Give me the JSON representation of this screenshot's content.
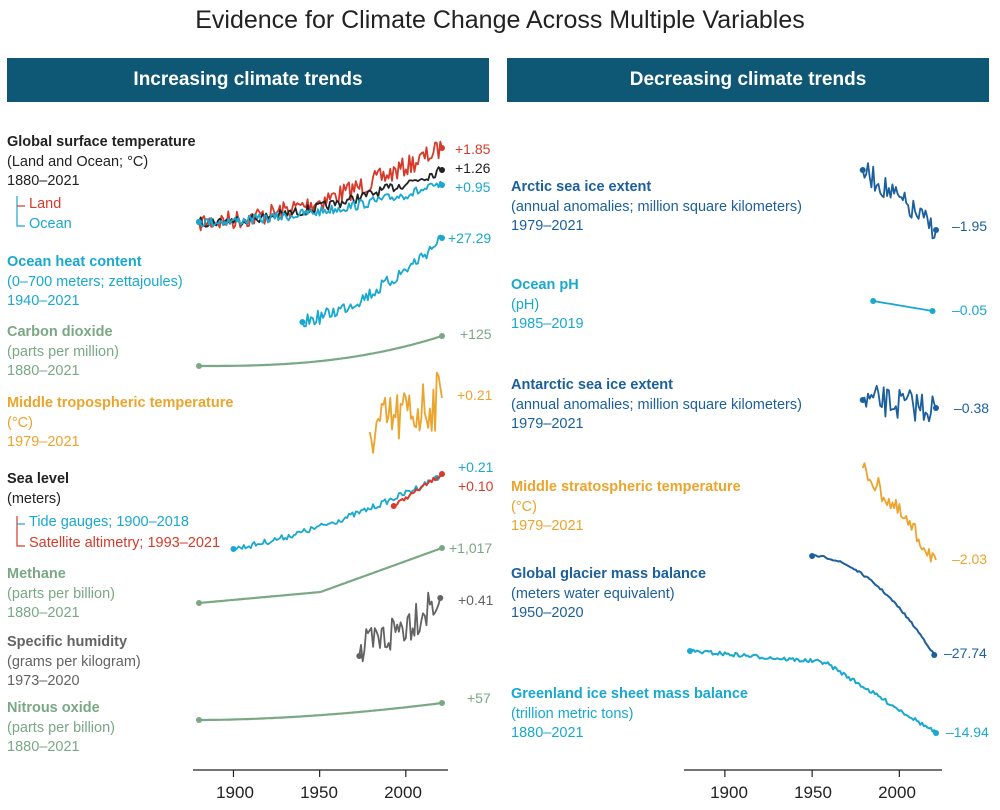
{
  "title": "Evidence for Climate Change Across Multiple Variables",
  "headers": {
    "left": "Increasing climate trends",
    "right": "Decreasing climate trends"
  },
  "colors": {
    "banner": "#0e5775",
    "black": "#222222",
    "red": "#d63a2a",
    "cyan": "#19a8cf",
    "green": "#7aa884",
    "orange": "#eca42c",
    "gray": "#636363",
    "darkblue": "#1b5f9c"
  },
  "x_ticks": [
    "1900",
    "1950",
    "2000"
  ],
  "legends": {
    "temperature": [
      {
        "label": "Land",
        "color": "#d63a2a"
      },
      {
        "label": "Ocean",
        "color": "#19a8cf"
      }
    ],
    "sea_level": [
      {
        "label": "Tide gauges; 1900–2018",
        "color": "#19a8cf"
      },
      {
        "label": "Satellite altimetry; 1993–2021",
        "color": "#d63a2a"
      }
    ]
  },
  "left_labels": [
    {
      "title": "Global surface temperature",
      "lines": [
        "(Land and Ocean; °C)",
        "1880–2021"
      ],
      "color": "#222222"
    },
    {
      "title": "Ocean heat content",
      "lines": [
        "(0–700 meters; zettajoules)",
        "1940–2021"
      ],
      "color": "#19a8cf"
    },
    {
      "title": "Carbon dioxide",
      "lines": [
        "(parts per million)",
        "1880–2021"
      ],
      "color": "#7aa884"
    },
    {
      "title": "Middle tropospheric temperature",
      "lines": [
        "(°C)",
        "1979–2021"
      ],
      "color": "#eca42c"
    },
    {
      "title": "Sea level",
      "lines": [
        "(meters)"
      ],
      "color": "#222222"
    },
    {
      "title": "Methane",
      "lines": [
        "(parts per billion)",
        "1880–2021"
      ],
      "color": "#7aa884"
    },
    {
      "title": "Specific humidity",
      "lines": [
        "(grams per kilogram)",
        "1973–2020"
      ],
      "color": "#636363"
    },
    {
      "title": "Nitrous oxide",
      "lines": [
        "(parts per billion)",
        "1880–2021"
      ],
      "color": "#7aa884"
    }
  ],
  "right_labels": [
    {
      "title": "Arctic sea ice extent",
      "lines": [
        "(annual anomalies; million square kilometers)",
        "1979–2021"
      ],
      "color": "#1b5f9c"
    },
    {
      "title": "Ocean pH",
      "lines": [
        "(pH)",
        "1985–2019"
      ],
      "color": "#19a8cf"
    },
    {
      "title": "Antarctic sea ice extent",
      "lines": [
        "(annual anomalies; million square kilometers)",
        "1979–2021"
      ],
      "color": "#1b5f9c"
    },
    {
      "title": "Middle stratospheric temperature",
      "lines": [
        "(°C)",
        "1979–2021"
      ],
      "color": "#eca42c"
    },
    {
      "title": "Global glacier mass balance",
      "lines": [
        "(meters water equivalent)",
        "1950–2020"
      ],
      "color": "#1b5f9c"
    },
    {
      "title": "Greenland ice sheet mass balance",
      "lines": [
        "(trillion metric tons)",
        "1880–2021"
      ],
      "color": "#19a8cf"
    }
  ],
  "chart_data": [
    {
      "type": "line",
      "panel": "left",
      "name": "Global surface temperature",
      "units": "°C",
      "x_range": [
        1880,
        2021
      ],
      "series": [
        {
          "name": "Land",
          "color": "#d63a2a",
          "start": 0,
          "end": 1.85,
          "end_label": "+1.85"
        },
        {
          "name": "Land and Ocean",
          "color": "#222222",
          "start": 0,
          "end": 1.26,
          "end_label": "+1.26"
        },
        {
          "name": "Ocean",
          "color": "#19a8cf",
          "start": 0,
          "end": 0.95,
          "end_label": "+0.95"
        }
      ]
    },
    {
      "type": "line",
      "panel": "left",
      "name": "Ocean heat content",
      "units": "zettajoules",
      "x_range": [
        1940,
        2021
      ],
      "color": "#19a8cf",
      "change": 27.29,
      "end_label": "+27.29"
    },
    {
      "type": "line",
      "panel": "left",
      "name": "Carbon dioxide",
      "units": "parts per million",
      "x_range": [
        1880,
        2021
      ],
      "color": "#7aa884",
      "change": 125,
      "end_label": "+125"
    },
    {
      "type": "line",
      "panel": "left",
      "name": "Middle tropospheric temperature",
      "units": "°C",
      "x_range": [
        1979,
        2021
      ],
      "color": "#eca42c",
      "change": 0.21,
      "end_label": "+0.21"
    },
    {
      "type": "line",
      "panel": "left",
      "name": "Sea level",
      "units": "meters",
      "series": [
        {
          "name": "Tide gauges",
          "x_range": [
            1900,
            2018
          ],
          "color": "#19a8cf",
          "change": 0.21,
          "end_label": "+0.21"
        },
        {
          "name": "Satellite altimetry",
          "x_range": [
            1993,
            2021
          ],
          "color": "#d63a2a",
          "change": 0.1,
          "end_label": "+0.10"
        }
      ]
    },
    {
      "type": "line",
      "panel": "left",
      "name": "Methane",
      "units": "parts per billion",
      "x_range": [
        1880,
        2021
      ],
      "color": "#7aa884",
      "change": 1017,
      "end_label": "+1,017"
    },
    {
      "type": "line",
      "panel": "left",
      "name": "Specific humidity",
      "units": "grams per kilogram",
      "x_range": [
        1973,
        2020
      ],
      "color": "#636363",
      "change": 0.41,
      "end_label": "+0.41"
    },
    {
      "type": "line",
      "panel": "left",
      "name": "Nitrous oxide",
      "units": "parts per billion",
      "x_range": [
        1880,
        2021
      ],
      "color": "#7aa884",
      "change": 57,
      "end_label": "+57"
    },
    {
      "type": "line",
      "panel": "right",
      "name": "Arctic sea ice extent",
      "units": "million square kilometers",
      "x_range": [
        1979,
        2021
      ],
      "color": "#1b5f9c",
      "change": -1.95,
      "end_label": "–1.95"
    },
    {
      "type": "line",
      "panel": "right",
      "name": "Ocean pH",
      "units": "pH",
      "x_range": [
        1985,
        2019
      ],
      "color": "#19a8cf",
      "change": -0.05,
      "end_label": "–0.05"
    },
    {
      "type": "line",
      "panel": "right",
      "name": "Antarctic sea ice extent",
      "units": "million square kilometers",
      "x_range": [
        1979,
        2021
      ],
      "color": "#1b5f9c",
      "change": -0.38,
      "end_label": "–0.38"
    },
    {
      "type": "line",
      "panel": "right",
      "name": "Middle stratospheric temperature",
      "units": "°C",
      "x_range": [
        1979,
        2021
      ],
      "color": "#eca42c",
      "change": -2.03,
      "end_label": "–2.03"
    },
    {
      "type": "line",
      "panel": "right",
      "name": "Global glacier mass balance",
      "units": "meters water equivalent",
      "x_range": [
        1950,
        2020
      ],
      "color": "#1b5f9c",
      "change": -27.74,
      "end_label": "–27.74"
    },
    {
      "type": "line",
      "panel": "right",
      "name": "Greenland ice sheet mass balance",
      "units": "trillion metric tons",
      "x_range": [
        1880,
        2021
      ],
      "color": "#19a8cf",
      "change": -14.94,
      "end_label": "–14.94"
    }
  ]
}
